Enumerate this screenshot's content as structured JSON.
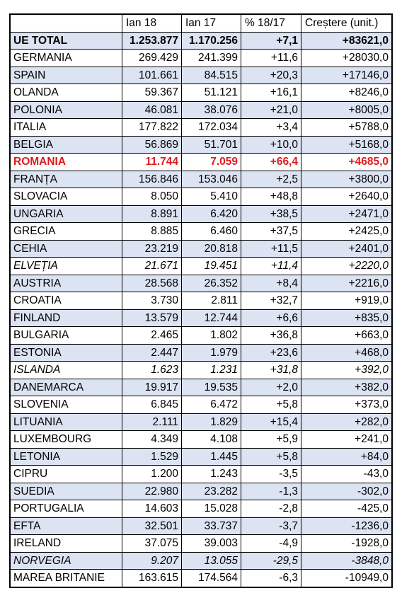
{
  "header": [
    "",
    "Ian 18",
    "Ian 17",
    "% 18/17",
    "Creștere (unit.)"
  ],
  "rows": [
    {
      "country": "UE TOTAL",
      "ian18": "1.253.877",
      "ian17": "1.170.256",
      "pct": "+7,1",
      "growth": "+83621,0",
      "style": "blue bold"
    },
    {
      "country": "GERMANIA",
      "ian18": "269.429",
      "ian17": "241.399",
      "pct": "+11,6",
      "growth": "+28030,0",
      "style": ""
    },
    {
      "country": "SPAIN",
      "ian18": "101.661",
      "ian17": "84.515",
      "pct": "+20,3",
      "growth": "+17146,0",
      "style": "blue"
    },
    {
      "country": "OLANDA",
      "ian18": "59.367",
      "ian17": "51.121",
      "pct": "+16,1",
      "growth": "+8246,0",
      "style": ""
    },
    {
      "country": "POLONIA",
      "ian18": "46.081",
      "ian17": "38.076",
      "pct": "+21,0",
      "growth": "+8005,0",
      "style": "blue"
    },
    {
      "country": "ITALIA",
      "ian18": "177.822",
      "ian17": "172.034",
      "pct": "+3,4",
      "growth": "+5788,0",
      "style": ""
    },
    {
      "country": "BELGIA",
      "ian18": "56.869",
      "ian17": "51.701",
      "pct": "+10,0",
      "growth": "+5168,0",
      "style": "blue"
    },
    {
      "country": "ROMANIA",
      "ian18": "11.744",
      "ian17": "7.059",
      "pct": "+66,4",
      "growth": "+4685,0",
      "style": "red"
    },
    {
      "country": "FRANȚA",
      "ian18": "156.846",
      "ian17": "153.046",
      "pct": "+2,5",
      "growth": "+3800,0",
      "style": "blue"
    },
    {
      "country": "SLOVACIA",
      "ian18": "8.050",
      "ian17": "5.410",
      "pct": "+48,8",
      "growth": "+2640,0",
      "style": ""
    },
    {
      "country": "UNGARIA",
      "ian18": "8.891",
      "ian17": "6.420",
      "pct": "+38,5",
      "growth": "+2471,0",
      "style": "blue"
    },
    {
      "country": "GRECIA",
      "ian18": "8.885",
      "ian17": "6.460",
      "pct": "+37,5",
      "growth": "+2425,0",
      "style": ""
    },
    {
      "country": "CEHIA",
      "ian18": "23.219",
      "ian17": "20.818",
      "pct": "+11,5",
      "growth": "+2401,0",
      "style": "blue"
    },
    {
      "country": "ELVEȚIA",
      "ian18": "21.671",
      "ian17": "19.451",
      "pct": "+11,4",
      "growth": "+2220,0",
      "style": "ital"
    },
    {
      "country": "AUSTRIA",
      "ian18": "28.568",
      "ian17": "26.352",
      "pct": "+8,4",
      "growth": "+2216,0",
      "style": "blue"
    },
    {
      "country": "CROATIA",
      "ian18": "3.730",
      "ian17": "2.811",
      "pct": "+32,7",
      "growth": "+919,0",
      "style": ""
    },
    {
      "country": "FINLAND",
      "ian18": "13.579",
      "ian17": "12.744",
      "pct": "+6,6",
      "growth": "+835,0",
      "style": "blue"
    },
    {
      "country": "BULGARIA",
      "ian18": "2.465",
      "ian17": "1.802",
      "pct": "+36,8",
      "growth": "+663,0",
      "style": ""
    },
    {
      "country": "ESTONIA",
      "ian18": "2.447",
      "ian17": "1.979",
      "pct": "+23,6",
      "growth": "+468,0",
      "style": "blue"
    },
    {
      "country": "ISLANDA",
      "ian18": "1.623",
      "ian17": "1.231",
      "pct": "+31,8",
      "growth": "+392,0",
      "style": "ital"
    },
    {
      "country": "DANEMARCA",
      "ian18": "19.917",
      "ian17": "19.535",
      "pct": "+2,0",
      "growth": "+382,0",
      "style": "blue"
    },
    {
      "country": "SLOVENIA",
      "ian18": "6.845",
      "ian17": "6.472",
      "pct": "+5,8",
      "growth": "+373,0",
      "style": ""
    },
    {
      "country": "LITUANIA",
      "ian18": "2.111",
      "ian17": "1.829",
      "pct": "+15,4",
      "growth": "+282,0",
      "style": "blue"
    },
    {
      "country": "LUXEMBOURG",
      "ian18": "4.349",
      "ian17": "4.108",
      "pct": "+5,9",
      "growth": "+241,0",
      "style": ""
    },
    {
      "country": "LETONIA",
      "ian18": "1.529",
      "ian17": "1.445",
      "pct": "+5,8",
      "growth": "+84,0",
      "style": "blue"
    },
    {
      "country": "CIPRU",
      "ian18": "1.200",
      "ian17": "1.243",
      "pct": "-3,5",
      "growth": "-43,0",
      "style": ""
    },
    {
      "country": "SUEDIA",
      "ian18": "22.980",
      "ian17": "23.282",
      "pct": "-1,3",
      "growth": "-302,0",
      "style": "blue"
    },
    {
      "country": "PORTUGALIA",
      "ian18": "14.603",
      "ian17": "15.028",
      "pct": "-2,8",
      "growth": "-425,0",
      "style": ""
    },
    {
      "country": "EFTA",
      "ian18": "32.501",
      "ian17": "33.737",
      "pct": "-3,7",
      "growth": "-1236,0",
      "style": "blue"
    },
    {
      "country": "IRELAND",
      "ian18": "37.075",
      "ian17": "39.003",
      "pct": "-4,9",
      "growth": "-1928,0",
      "style": ""
    },
    {
      "country": "NORVEGIA",
      "ian18": "9.207",
      "ian17": "13.055",
      "pct": "-29,5",
      "growth": "-3848,0",
      "style": "blue ital"
    },
    {
      "country": "MAREA BRITANIE",
      "ian18": "163.615",
      "ian17": "174.564",
      "pct": "-6,3",
      "growth": "-10949,0",
      "style": ""
    }
  ],
  "colors": {
    "row_blue": "#dce3f2",
    "highlight_red": "#e01b1b",
    "border": "#000000"
  }
}
